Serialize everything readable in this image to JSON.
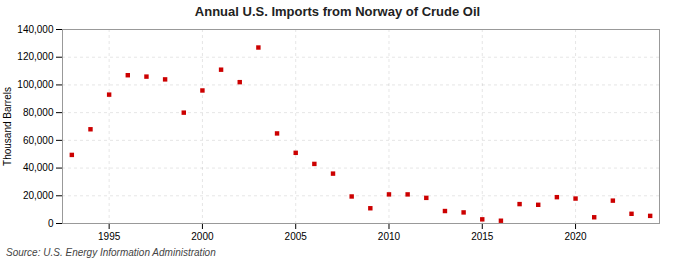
{
  "chart_data": {
    "type": "scatter",
    "title": "Annual U.S. Imports from Norway of Crude Oil",
    "ylabel": "Thousand Barrels",
    "source": "Source: U.S. Energy Information Administration",
    "x": [
      1993,
      1994,
      1995,
      1996,
      1997,
      1998,
      1999,
      2000,
      2001,
      2002,
      2003,
      2004,
      2005,
      2006,
      2007,
      2008,
      2009,
      2010,
      2011,
      2012,
      2013,
      2014,
      2015,
      2016,
      2017,
      2018,
      2019,
      2020,
      2021,
      2022,
      2023,
      2024
    ],
    "values": [
      49500,
      68000,
      93000,
      107000,
      106000,
      104000,
      80000,
      96000,
      111000,
      102000,
      127000,
      65000,
      51000,
      43000,
      36000,
      19500,
      11000,
      21000,
      21000,
      18500,
      9000,
      8000,
      3000,
      2000,
      14000,
      13500,
      19000,
      18000,
      4500,
      16500,
      7000,
      5500
    ],
    "color": "#cc0000",
    "marker": "square",
    "xlim": [
      1992.5,
      2024.5
    ],
    "xticks": [
      1995,
      2000,
      2005,
      2010,
      2015,
      2020
    ],
    "ylim": [
      0,
      140000
    ],
    "yticks": [
      0,
      {
        "value": 20000,
        "label": "20,000"
      },
      {
        "value": 40000,
        "label": "40,000"
      },
      {
        "value": 60000,
        "label": "60,000"
      },
      {
        "value": 80000,
        "label": "80,000"
      },
      {
        "value": 100000,
        "label": "100,000"
      },
      {
        "value": 120000,
        "label": "120,000"
      },
      {
        "value": 140000,
        "label": "140,000"
      }
    ],
    "grid": true
  }
}
